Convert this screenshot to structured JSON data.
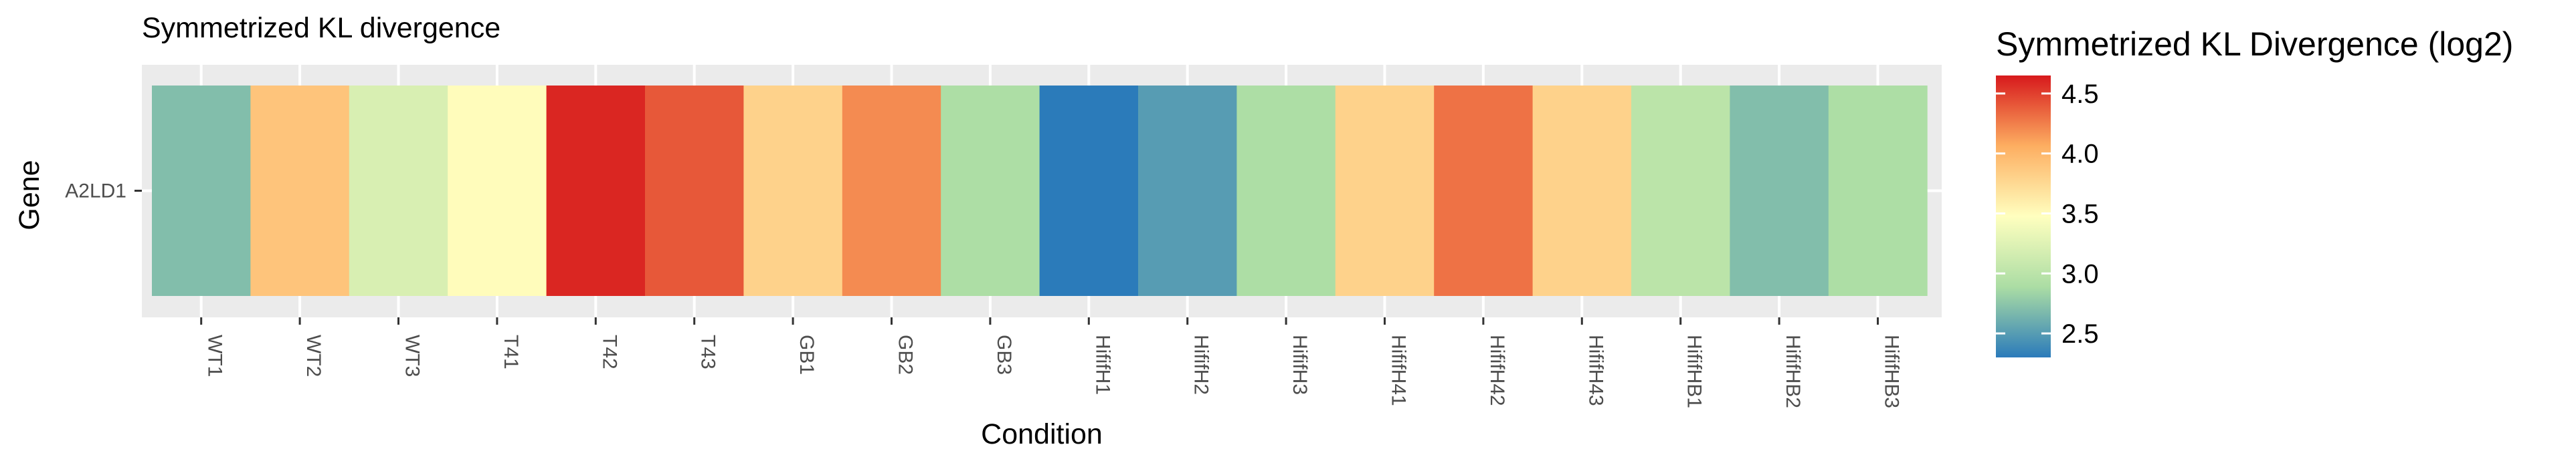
{
  "chart_data": {
    "type": "heatmap",
    "title": "Symmetrized KL divergence",
    "xlabel": "Condition",
    "ylabel": "Gene",
    "rows": [
      "A2LD1"
    ],
    "columns": [
      "WT1",
      "WT2",
      "WT3",
      "T41",
      "T42",
      "T43",
      "GB1",
      "GB2",
      "GB3",
      "HififH1",
      "HififH2",
      "HififH3",
      "HififH41",
      "HififH42",
      "HififH43",
      "HififHB1",
      "HififHB2",
      "HififHB3"
    ],
    "values": [
      [
        2.7,
        3.9,
        3.2,
        3.5,
        4.6,
        4.4,
        3.8,
        4.2,
        2.9,
        2.3,
        2.5,
        2.9,
        3.8,
        4.3,
        3.8,
        3.0,
        2.7,
        2.9
      ]
    ],
    "legend": {
      "title": "Symmetrized KL Divergence (log2)",
      "ticks": [
        2.5,
        3.0,
        3.5,
        4.0,
        4.5
      ],
      "tick_labels": [
        "2.5",
        "3.0",
        "3.5",
        "4.0",
        "4.5"
      ],
      "min": 2.3,
      "max": 4.65,
      "placement": "right",
      "palette": [
        "#2b7bba",
        "#abdda4",
        "#ffffbf",
        "#fdae61",
        "#d7191c"
      ]
    },
    "grid": true,
    "panel_color": "#ebebeb"
  }
}
